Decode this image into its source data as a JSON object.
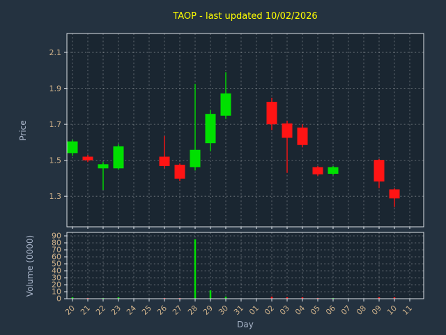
{
  "colors": {
    "figure_background": "#243240",
    "plot_background": "#1a2631",
    "title_color": "#ffff00",
    "axis_label_color": "#a9b5c9",
    "tick_color": "#d2b48c",
    "grid_color": "#ffffff",
    "spine_color": "#dde2e8",
    "up_color": "#00e000",
    "down_color": "#ff1414"
  },
  "chart_data": {
    "type": "candlestick",
    "title": "TAOP - last updated 10/02/2026",
    "xlabel": "Day",
    "price_ylabel": "Price",
    "volume_ylabel": "Volume (0000)",
    "legend": "none",
    "grid": "on",
    "price_ticks": [
      2.1,
      1.9,
      1.7,
      1.5,
      1.3
    ],
    "price_range": [
      1.13,
      2.205
    ],
    "volume_ticks": [
      90,
      80,
      70,
      60,
      50,
      40,
      30,
      20,
      10,
      0
    ],
    "volume_range": [
      0,
      95
    ],
    "x_categories": [
      "20",
      "21",
      "22",
      "23",
      "24",
      "25",
      "26",
      "27",
      "28",
      "29",
      "30",
      "31",
      "01",
      "02",
      "03",
      "04",
      "05",
      "06",
      "07",
      "08",
      "09",
      "10",
      "11"
    ],
    "candles": [
      {
        "day": "20",
        "open": 1.54,
        "high": 1.615,
        "low": 1.525,
        "close": 1.605,
        "volume": 2
      },
      {
        "day": "21",
        "open": 1.52,
        "high": 1.53,
        "low": 1.49,
        "close": 1.5,
        "volume": 1
      },
      {
        "day": "22",
        "open": 1.455,
        "high": 1.49,
        "low": 1.335,
        "close": 1.478,
        "volume": 1
      },
      {
        "day": "23",
        "open": 1.455,
        "high": 1.59,
        "low": 1.448,
        "close": 1.578,
        "volume": 2
      },
      {
        "day": "26",
        "open": 1.52,
        "high": 1.635,
        "low": 1.455,
        "close": 1.468,
        "volume": 1
      },
      {
        "day": "27",
        "open": 1.475,
        "high": 1.482,
        "low": 1.385,
        "close": 1.398,
        "volume": 1
      },
      {
        "day": "28",
        "open": 1.462,
        "high": 1.925,
        "low": 1.443,
        "close": 1.558,
        "volume": 85
      },
      {
        "day": "29",
        "open": 1.595,
        "high": 1.78,
        "low": 1.55,
        "close": 1.758,
        "volume": 12
      },
      {
        "day": "30",
        "open": 1.748,
        "high": 1.99,
        "low": 1.73,
        "close": 1.872,
        "volume": 3
      },
      {
        "day": "02",
        "open": 1.825,
        "high": 1.848,
        "low": 1.668,
        "close": 1.7,
        "volume": 3
      },
      {
        "day": "03",
        "open": 1.705,
        "high": 1.72,
        "low": 1.43,
        "close": 1.625,
        "volume": 2
      },
      {
        "day": "04",
        "open": 1.682,
        "high": 1.7,
        "low": 1.572,
        "close": 1.585,
        "volume": 2
      },
      {
        "day": "05",
        "open": 1.462,
        "high": 1.468,
        "low": 1.412,
        "close": 1.422,
        "volume": 1
      },
      {
        "day": "06",
        "open": 1.425,
        "high": 1.468,
        "low": 1.418,
        "close": 1.462,
        "volume": 1
      },
      {
        "day": "09",
        "open": 1.502,
        "high": 1.508,
        "low": 1.345,
        "close": 1.382,
        "volume": 2
      },
      {
        "day": "10",
        "open": 1.338,
        "high": 1.345,
        "low": 1.24,
        "close": 1.288,
        "volume": 2
      }
    ]
  }
}
